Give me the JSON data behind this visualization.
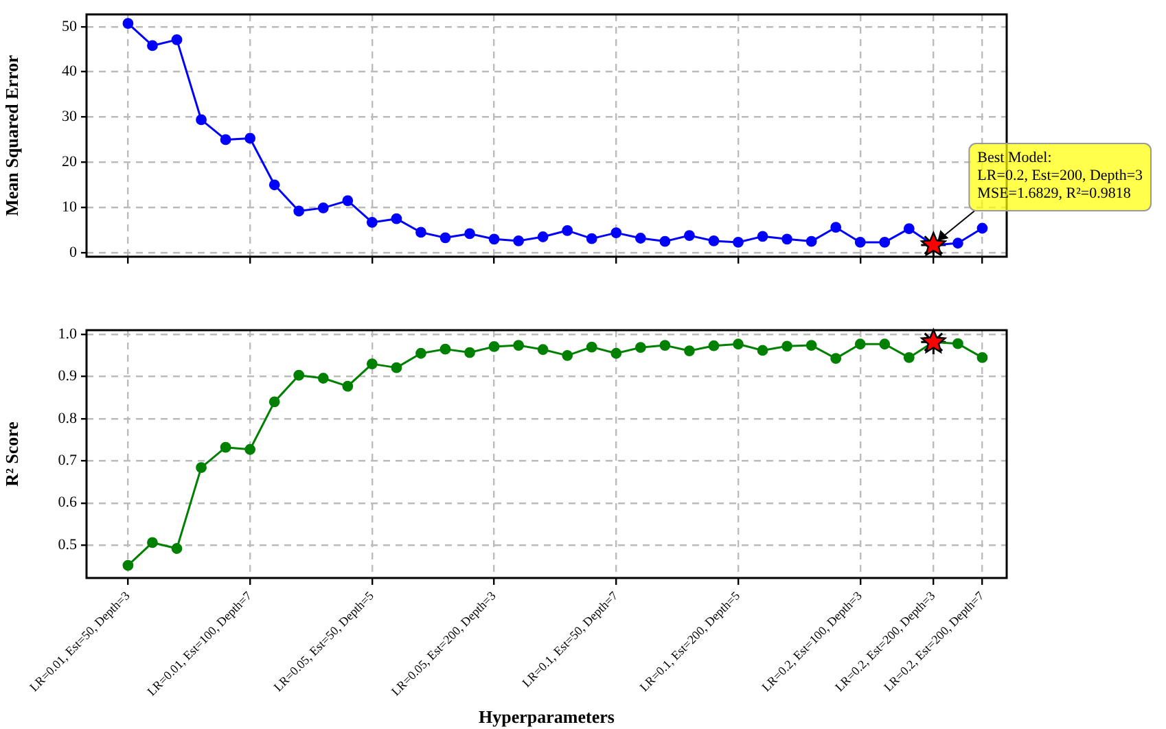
{
  "chart_data": [
    {
      "type": "line",
      "ylabel": "Mean Squared Error",
      "categories": [
        "LR=0.01, Est=50, Depth=3",
        null,
        null,
        null,
        null,
        "LR=0.01, Est=100, Depth=7",
        null,
        null,
        null,
        null,
        "LR=0.05, Est=50, Depth=5",
        null,
        null,
        null,
        null,
        "LR=0.05, Est=200, Depth=3",
        null,
        null,
        null,
        null,
        "LR=0.1, Est=50, Depth=7",
        null,
        null,
        null,
        null,
        "LR=0.1, Est=200, Depth=5",
        null,
        null,
        null,
        null,
        "LR=0.2, Est=100, Depth=3",
        null,
        null,
        "LR=0.2, Est=200, Depth=3",
        null,
        "LR=0.2, Est=200, Depth=7"
      ],
      "series": [
        {
          "type": "line",
          "color": "#0000ff",
          "marker": "circle",
          "line_style": "solid",
          "values": [
            50.7,
            45.8,
            47.1,
            29.4,
            25,
            25.3,
            15,
            9.2,
            9.9,
            11.5,
            6.7,
            7.5,
            4.5,
            3.3,
            4.2,
            3,
            2.6,
            3.5,
            4.9,
            3.1,
            4.4,
            3.2,
            2.5,
            3.8,
            2.6,
            2.3,
            3.6,
            3,
            2.5,
            5.6,
            2.3,
            2.3,
            5.3,
            1.6829,
            2.1,
            5.4
          ]
        },
        {
          "type": "scatter",
          "color": "#ff0000",
          "marker": "star",
          "x": [
            "LR=0.2, Est=200, Depth=3"
          ],
          "values": [
            1.6829
          ]
        }
      ],
      "ylim": [
        -0.9,
        52.7
      ],
      "yticks": [
        0,
        10,
        20,
        30,
        40,
        50
      ],
      "grid": true,
      "legend": false,
      "tick_labels": "y",
      "annotations": [
        {
          "text": "Best Model:\nLR=0.2, Est=200, Depth=3\nMSE=1.6829, R²=0.9818",
          "x": "LR=0.2, Est=200, Depth=3",
          "y": 1.6829
        }
      ]
    },
    {
      "type": "line",
      "xlabel": "Hyperparameters",
      "ylabel": "R² Score",
      "categories": [
        "LR=0.01, Est=50, Depth=3",
        null,
        null,
        null,
        null,
        "LR=0.01, Est=100, Depth=7",
        null,
        null,
        null,
        null,
        "LR=0.05, Est=50, Depth=5",
        null,
        null,
        null,
        null,
        "LR=0.05, Est=200, Depth=3",
        null,
        null,
        null,
        null,
        "LR=0.1, Est=50, Depth=7",
        null,
        null,
        null,
        null,
        "LR=0.1, Est=200, Depth=5",
        null,
        null,
        null,
        null,
        "LR=0.2, Est=100, Depth=3",
        null,
        null,
        "LR=0.2, Est=200, Depth=3",
        null,
        "LR=0.2, Est=200, Depth=7"
      ],
      "series": [
        {
          "type": "line",
          "color": "#008000",
          "marker": "circle",
          "line_style": "solid",
          "values": [
            0.452,
            0.506,
            0.492,
            0.684,
            0.732,
            0.727,
            0.84,
            0.903,
            0.896,
            0.877,
            0.93,
            0.921,
            0.955,
            0.965,
            0.957,
            0.971,
            0.974,
            0.964,
            0.95,
            0.97,
            0.955,
            0.969,
            0.974,
            0.961,
            0.973,
            0.977,
            0.962,
            0.972,
            0.974,
            0.943,
            0.977,
            0.977,
            0.945,
            0.9818,
            0.978,
            0.945
          ]
        },
        {
          "type": "scatter",
          "color": "#ff0000",
          "marker": "star",
          "x": [
            "LR=0.2, Est=200, Depth=3"
          ],
          "values": [
            0.9818
          ]
        }
      ],
      "ylim": [
        0.422,
        1.01
      ],
      "yticks": [
        0.5,
        0.6,
        0.7,
        0.8,
        0.9,
        {
          "value": 1,
          "label": "1.0"
        }
      ],
      "grid": true,
      "legend": false
    }
  ]
}
